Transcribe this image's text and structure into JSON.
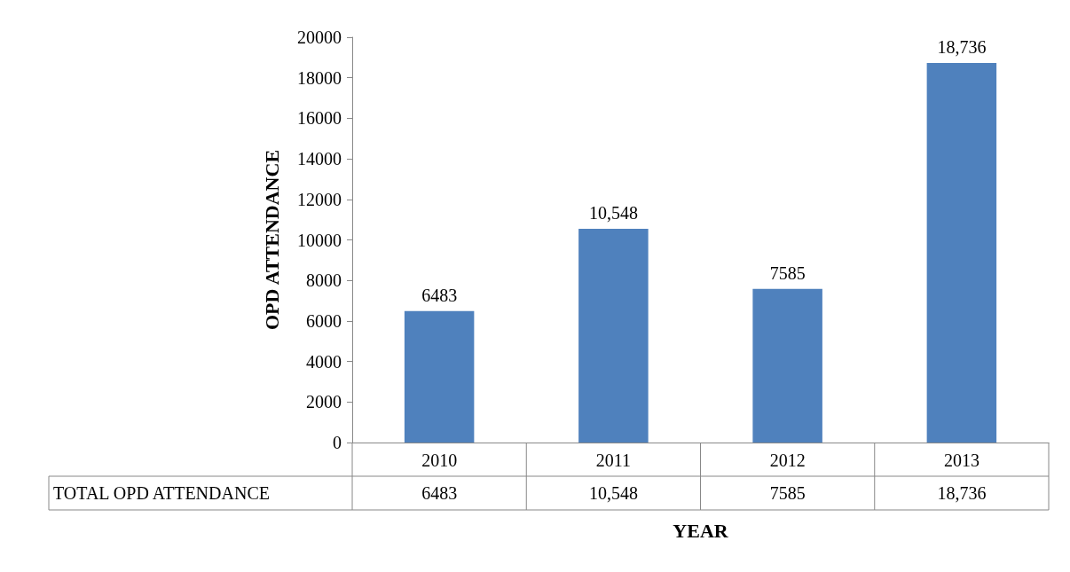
{
  "chart_data": {
    "type": "bar",
    "xlabel": "YEAR",
    "ylabel": "OPD ATTENDANCE",
    "categories": [
      "2010",
      "2011",
      "2012",
      "2013"
    ],
    "series": [
      {
        "name": "TOTAL OPD ATTENDANCE",
        "color": "#4f81bd",
        "values": [
          6483,
          10548,
          7585,
          18736
        ],
        "value_labels": [
          "6483",
          "10,548",
          "7585",
          "18,736"
        ]
      }
    ],
    "ylim": [
      0,
      20000
    ],
    "yticks": [
      0,
      2000,
      4000,
      6000,
      8000,
      10000,
      12000,
      14000,
      16000,
      18000,
      20000
    ],
    "grid": false,
    "legend": false
  }
}
